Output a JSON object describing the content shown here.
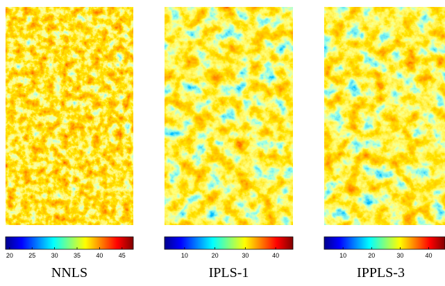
{
  "panels": [
    {
      "label": "NNLS",
      "colorbar_range": [
        19.1,
        47.5
      ],
      "colorbar_ticks": [
        20,
        25,
        30,
        35,
        40,
        45
      ]
    },
    {
      "label": "IPLS-1",
      "colorbar_range": [
        3.4,
        45.7
      ],
      "colorbar_ticks": [
        10,
        20,
        30,
        40
      ]
    },
    {
      "label": "IPPLS-3",
      "colorbar_range": [
        3.4,
        45.7
      ],
      "colorbar_ticks": [
        10,
        20,
        30,
        40
      ]
    }
  ]
}
